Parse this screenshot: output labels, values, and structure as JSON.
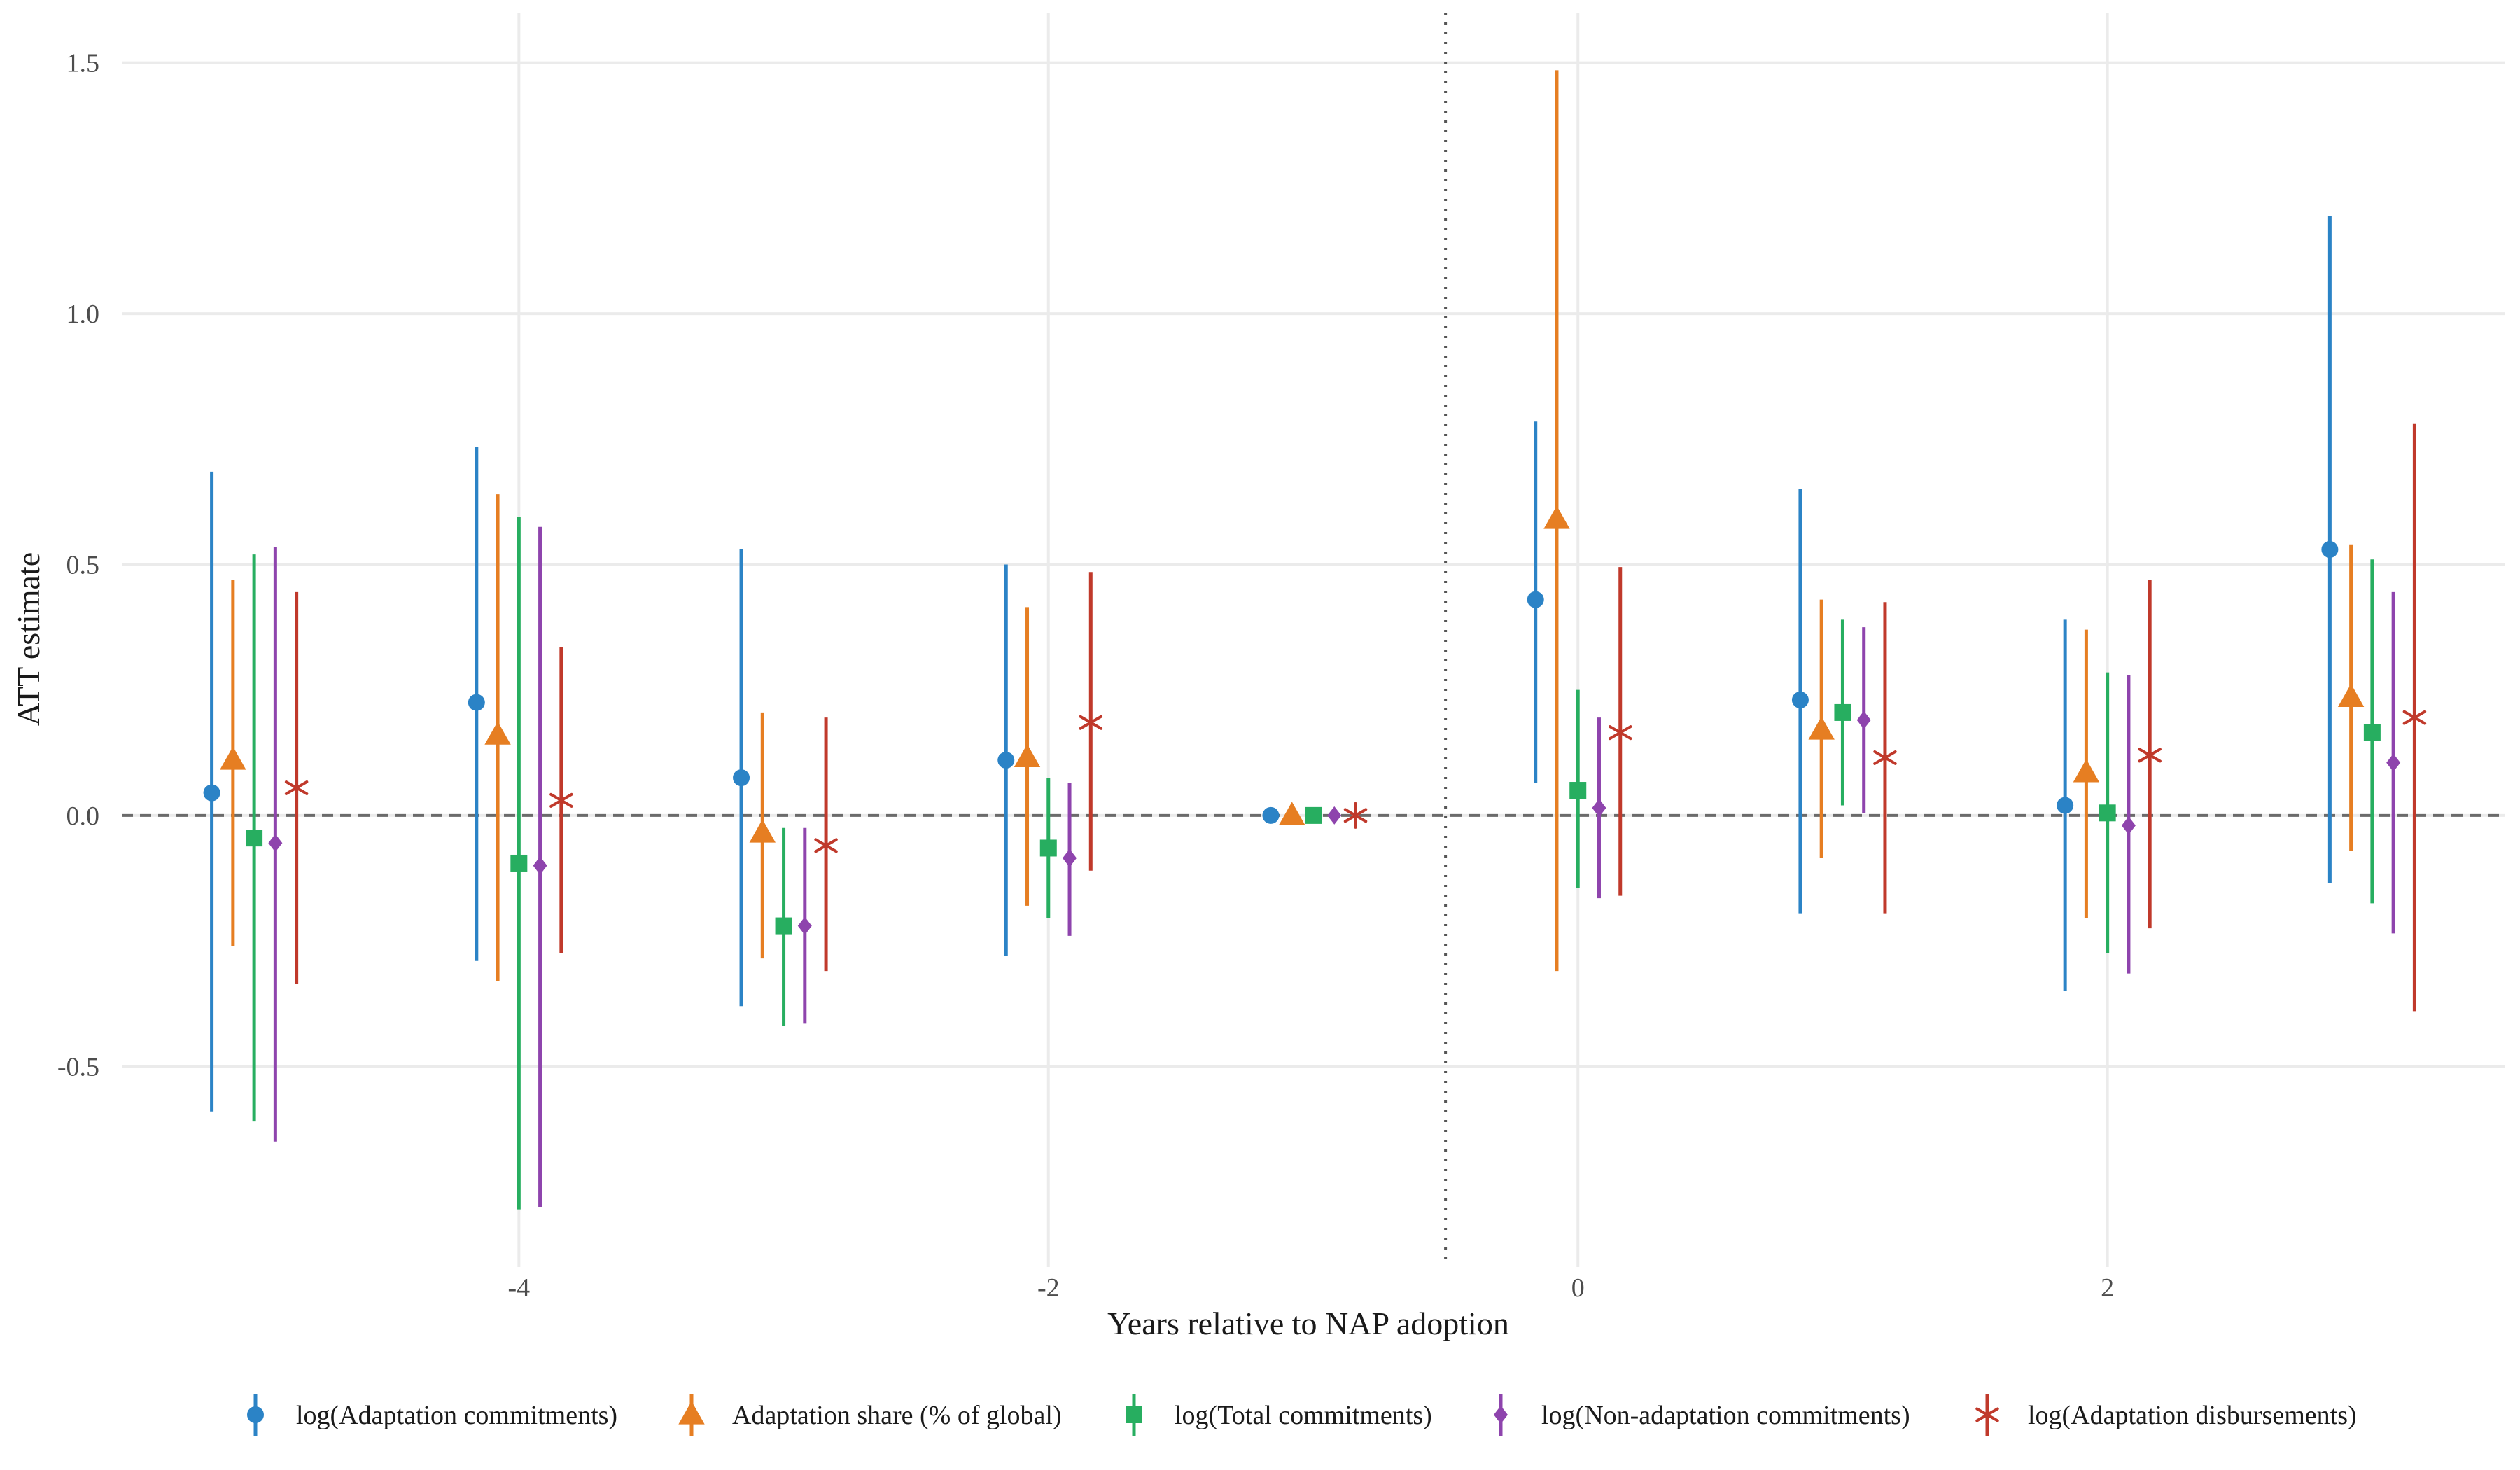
{
  "chart_data": {
    "type": "scatter",
    "subtype": "event-study coefficient plot with confidence intervals",
    "xlabel": "Years relative to NAP adoption",
    "ylabel": "ATT estimate",
    "xlim": [
      -5.5,
      3.5
    ],
    "ylim": [
      -0.9,
      1.6
    ],
    "x_ticks": [
      -4,
      -2,
      0,
      2
    ],
    "x_tick_labels": [
      "-4",
      "-2",
      "0",
      "2"
    ],
    "y_ticks": [
      -0.5,
      0.0,
      0.5,
      1.0,
      1.5
    ],
    "y_tick_labels": [
      "-0.5",
      "0.0",
      "0.5",
      "1.0",
      "1.5"
    ],
    "grid": true,
    "reference_lines": [
      {
        "axis": "y",
        "value": 0,
        "style": "dashed"
      },
      {
        "axis": "x",
        "value": -0.5,
        "style": "dotted"
      }
    ],
    "legend_position": "bottom",
    "series": [
      {
        "name": "log(Adaptation commitments)",
        "marker": "circle",
        "color": "#2b83c6",
        "points": [
          {
            "x": -5,
            "y": 0.045,
            "lo": -0.59,
            "hi": 0.685
          },
          {
            "x": -4,
            "y": 0.225,
            "lo": -0.29,
            "hi": 0.735
          },
          {
            "x": -3,
            "y": 0.075,
            "lo": -0.38,
            "hi": 0.53
          },
          {
            "x": -2,
            "y": 0.11,
            "lo": -0.28,
            "hi": 0.5
          },
          {
            "x": -1,
            "y": 0.0,
            "lo": null,
            "hi": null
          },
          {
            "x": 0,
            "y": 0.43,
            "lo": 0.065,
            "hi": 0.785
          },
          {
            "x": 1,
            "y": 0.23,
            "lo": -0.195,
            "hi": 0.65
          },
          {
            "x": 2,
            "y": 0.02,
            "lo": -0.35,
            "hi": 0.39
          },
          {
            "x": 3,
            "y": 0.53,
            "lo": -0.135,
            "hi": 1.195
          }
        ]
      },
      {
        "name": "Adaptation share (% of global)",
        "marker": "triangle",
        "color": "#e67e22",
        "points": [
          {
            "x": -5,
            "y": 0.11,
            "lo": -0.26,
            "hi": 0.47
          },
          {
            "x": -4,
            "y": 0.16,
            "lo": -0.33,
            "hi": 0.64
          },
          {
            "x": -3,
            "y": -0.035,
            "lo": -0.285,
            "hi": 0.205
          },
          {
            "x": -2,
            "y": 0.115,
            "lo": -0.18,
            "hi": 0.415
          },
          {
            "x": -1,
            "y": 0.0,
            "lo": null,
            "hi": null
          },
          {
            "x": 0,
            "y": 0.59,
            "lo": -0.31,
            "hi": 1.485
          },
          {
            "x": 1,
            "y": 0.17,
            "lo": -0.085,
            "hi": 0.43
          },
          {
            "x": 2,
            "y": 0.085,
            "lo": -0.205,
            "hi": 0.37
          },
          {
            "x": 3,
            "y": 0.235,
            "lo": -0.07,
            "hi": 0.54
          }
        ]
      },
      {
        "name": "log(Total commitments)",
        "marker": "square",
        "color": "#27ae60",
        "points": [
          {
            "x": -5,
            "y": -0.045,
            "lo": -0.61,
            "hi": 0.52
          },
          {
            "x": -4,
            "y": -0.095,
            "lo": -0.785,
            "hi": 0.595
          },
          {
            "x": -3,
            "y": -0.22,
            "lo": -0.42,
            "hi": -0.025
          },
          {
            "x": -2,
            "y": -0.065,
            "lo": -0.205,
            "hi": 0.075
          },
          {
            "x": -1,
            "y": 0.0,
            "lo": null,
            "hi": null
          },
          {
            "x": 0,
            "y": 0.05,
            "lo": -0.145,
            "hi": 0.25
          },
          {
            "x": 1,
            "y": 0.205,
            "lo": 0.02,
            "hi": 0.39
          },
          {
            "x": 2,
            "y": 0.005,
            "lo": -0.275,
            "hi": 0.285
          },
          {
            "x": 3,
            "y": 0.165,
            "lo": -0.175,
            "hi": 0.51
          }
        ]
      },
      {
        "name": "log(Non-adaptation commitments)",
        "marker": "diamond",
        "color": "#8e44ad",
        "points": [
          {
            "x": -5,
            "y": -0.055,
            "lo": -0.65,
            "hi": 0.535
          },
          {
            "x": -4,
            "y": -0.1,
            "lo": -0.78,
            "hi": 0.575
          },
          {
            "x": -3,
            "y": -0.22,
            "lo": -0.415,
            "hi": -0.025
          },
          {
            "x": -2,
            "y": -0.085,
            "lo": -0.24,
            "hi": 0.065
          },
          {
            "x": -1,
            "y": 0.0,
            "lo": null,
            "hi": null
          },
          {
            "x": 0,
            "y": 0.015,
            "lo": -0.165,
            "hi": 0.195
          },
          {
            "x": 1,
            "y": 0.19,
            "lo": 0.005,
            "hi": 0.375
          },
          {
            "x": 2,
            "y": -0.02,
            "lo": -0.315,
            "hi": 0.28
          },
          {
            "x": 3,
            "y": 0.105,
            "lo": -0.235,
            "hi": 0.445
          }
        ]
      },
      {
        "name": "log(Adaptation disbursements)",
        "marker": "asterisk",
        "color": "#c0392b",
        "points": [
          {
            "x": -5,
            "y": 0.055,
            "lo": -0.335,
            "hi": 0.445
          },
          {
            "x": -4,
            "y": 0.03,
            "lo": -0.275,
            "hi": 0.335
          },
          {
            "x": -3,
            "y": -0.06,
            "lo": -0.31,
            "hi": 0.195
          },
          {
            "x": -2,
            "y": 0.185,
            "lo": -0.11,
            "hi": 0.485
          },
          {
            "x": -1,
            "y": 0.0,
            "lo": null,
            "hi": null
          },
          {
            "x": 0,
            "y": 0.165,
            "lo": -0.16,
            "hi": 0.495
          },
          {
            "x": 1,
            "y": 0.115,
            "lo": -0.195,
            "hi": 0.425
          },
          {
            "x": 2,
            "y": 0.12,
            "lo": -0.225,
            "hi": 0.47
          },
          {
            "x": 3,
            "y": 0.195,
            "lo": -0.39,
            "hi": 0.78
          }
        ]
      }
    ]
  }
}
